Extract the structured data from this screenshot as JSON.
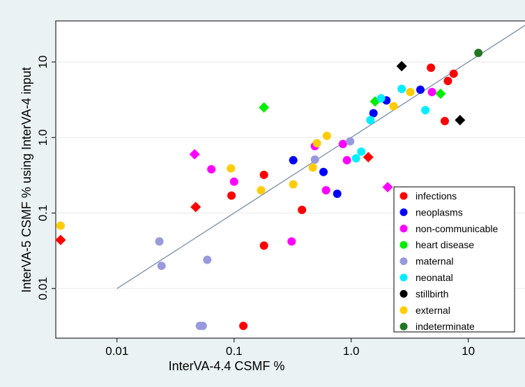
{
  "chart_data": {
    "type": "scatter",
    "xlabel": "InterVA-4.4 CSMF %",
    "ylabel": "InterVA-5 CSMF % using InterVA-4 input",
    "x_scale": "log",
    "y_scale": "log",
    "xlim": [
      0.003,
      35
    ],
    "ylim": [
      0.0022,
      35
    ],
    "x_ticks": [
      0.01,
      0.1,
      1,
      10
    ],
    "x_tick_labels": [
      "0.01",
      "0.1",
      "1.0",
      "10"
    ],
    "y_ticks": [
      0.01,
      0.1,
      1,
      10
    ],
    "y_tick_labels": [
      "0.01",
      "0.1",
      "1.0",
      "10"
    ],
    "grid": "horizontal",
    "legend_position": "bottom-right",
    "reference_line": {
      "from": [
        0.01,
        0.01
      ],
      "to": [
        32,
        32
      ],
      "color": "#7a8ea8"
    },
    "series": [
      {
        "name": "infections",
        "color": "#ff0000",
        "points": [
          {
            "x": 0.0033,
            "y": 0.044,
            "marker": "diamond"
          },
          {
            "x": 0.047,
            "y": 0.12,
            "marker": "diamond"
          },
          {
            "x": 0.095,
            "y": 0.17,
            "marker": "circle"
          },
          {
            "x": 0.12,
            "y": 0.0032,
            "marker": "circle"
          },
          {
            "x": 0.18,
            "y": 0.32,
            "marker": "circle"
          },
          {
            "x": 0.18,
            "y": 0.037,
            "marker": "circle"
          },
          {
            "x": 0.38,
            "y": 0.11,
            "marker": "circle"
          },
          {
            "x": 1.4,
            "y": 0.55,
            "marker": "diamond"
          },
          {
            "x": 4.8,
            "y": 8.4,
            "marker": "circle"
          },
          {
            "x": 6.3,
            "y": 1.65,
            "marker": "circle"
          },
          {
            "x": 6.7,
            "y": 5.6,
            "marker": "circle"
          },
          {
            "x": 7.5,
            "y": 7.0,
            "marker": "circle"
          }
        ]
      },
      {
        "name": "neoplasms",
        "color": "#0000ff",
        "points": [
          {
            "x": 0.32,
            "y": 0.5,
            "marker": "circle"
          },
          {
            "x": 0.58,
            "y": 0.35,
            "marker": "circle"
          },
          {
            "x": 0.76,
            "y": 0.18,
            "marker": "circle"
          },
          {
            "x": 1.55,
            "y": 2.1,
            "marker": "circle"
          },
          {
            "x": 2.0,
            "y": 3.1,
            "marker": "circle"
          },
          {
            "x": 3.9,
            "y": 4.3,
            "marker": "circle"
          }
        ]
      },
      {
        "name": "non-communicable",
        "color": "#ff00ff",
        "points": [
          {
            "x": 0.046,
            "y": 0.6,
            "marker": "diamond"
          },
          {
            "x": 0.064,
            "y": 0.38,
            "marker": "circle"
          },
          {
            "x": 0.1,
            "y": 0.26,
            "marker": "circle"
          },
          {
            "x": 0.31,
            "y": 0.042,
            "marker": "circle"
          },
          {
            "x": 0.49,
            "y": 0.77,
            "marker": "circle"
          },
          {
            "x": 0.61,
            "y": 0.2,
            "marker": "circle"
          },
          {
            "x": 0.85,
            "y": 0.82,
            "marker": "circle"
          },
          {
            "x": 0.92,
            "y": 0.5,
            "marker": "circle"
          },
          {
            "x": 2.05,
            "y": 0.22,
            "marker": "diamond"
          },
          {
            "x": 4.9,
            "y": 4.0,
            "marker": "circle"
          }
        ]
      },
      {
        "name": "heart disease",
        "color": "#00ee00",
        "points": [
          {
            "x": 0.18,
            "y": 2.5,
            "marker": "diamond"
          },
          {
            "x": 1.6,
            "y": 3.0,
            "marker": "diamond"
          },
          {
            "x": 5.8,
            "y": 3.8,
            "marker": "diamond"
          }
        ]
      },
      {
        "name": "maternal",
        "color": "#9999dd",
        "points": [
          {
            "x": 0.023,
            "y": 0.042,
            "marker": "circle"
          },
          {
            "x": 0.024,
            "y": 0.02,
            "marker": "circle"
          },
          {
            "x": 0.051,
            "y": 0.0032,
            "marker": "circle"
          },
          {
            "x": 0.054,
            "y": 0.0032,
            "marker": "circle"
          },
          {
            "x": 0.059,
            "y": 0.024,
            "marker": "circle"
          },
          {
            "x": 0.49,
            "y": 0.51,
            "marker": "circle"
          },
          {
            "x": 0.98,
            "y": 0.89,
            "marker": "circle"
          }
        ]
      },
      {
        "name": "neonatal",
        "color": "#00eeff",
        "points": [
          {
            "x": 1.1,
            "y": 0.53,
            "marker": "circle"
          },
          {
            "x": 1.22,
            "y": 0.65,
            "marker": "circle"
          },
          {
            "x": 1.46,
            "y": 1.7,
            "marker": "circle"
          },
          {
            "x": 1.8,
            "y": 3.3,
            "marker": "circle"
          },
          {
            "x": 2.7,
            "y": 4.4,
            "marker": "circle"
          },
          {
            "x": 4.3,
            "y": 2.3,
            "marker": "circle"
          }
        ]
      },
      {
        "name": "stillbirth",
        "color": "#000000",
        "points": [
          {
            "x": 2.7,
            "y": 8.8,
            "marker": "diamond"
          },
          {
            "x": 8.5,
            "y": 1.7,
            "marker": "diamond"
          }
        ]
      },
      {
        "name": "external",
        "color": "#ffcc00",
        "points": [
          {
            "x": 0.0033,
            "y": 0.068,
            "marker": "circle"
          },
          {
            "x": 0.094,
            "y": 0.39,
            "marker": "circle"
          },
          {
            "x": 0.17,
            "y": 0.2,
            "marker": "circle"
          },
          {
            "x": 0.32,
            "y": 0.24,
            "marker": "circle"
          },
          {
            "x": 0.47,
            "y": 0.4,
            "marker": "circle"
          },
          {
            "x": 0.51,
            "y": 0.84,
            "marker": "circle"
          },
          {
            "x": 0.62,
            "y": 1.05,
            "marker": "circle"
          },
          {
            "x": 2.3,
            "y": 2.6,
            "marker": "circle"
          },
          {
            "x": 3.2,
            "y": 4.0,
            "marker": "circle"
          }
        ]
      },
      {
        "name": "indeterminate",
        "color": "#227722",
        "points": [
          {
            "x": 12.2,
            "y": 13.2,
            "marker": "circle"
          }
        ]
      }
    ]
  }
}
